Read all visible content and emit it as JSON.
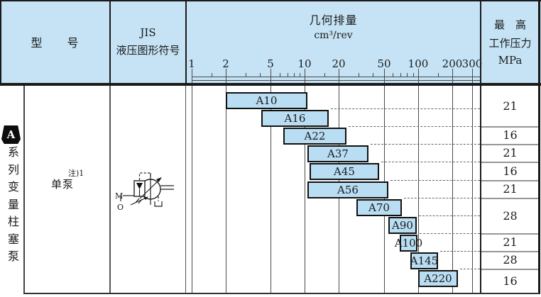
{
  "columns": {
    "model": "型　　号",
    "jis_line1": "JIS",
    "jis_line2": "液压图形符号",
    "displacement_title": "几何排量",
    "displacement_unit": "cm³/rev",
    "pressure_line1": "最　高",
    "pressure_line2": "工作压力",
    "pressure_line3": "MPa"
  },
  "sidebar": {
    "badge": "A",
    "vertical_label": "系列变量柱塞泵"
  },
  "model_cell": {
    "note": "注)1",
    "label": "单泵"
  },
  "jis_symbol": {
    "port_m": "M",
    "port_o": "O"
  },
  "chart_data": {
    "type": "bar",
    "orientation": "horizontal-range",
    "title": "几何排量",
    "xlabel": "cm³/rev",
    "x_scale": "log",
    "xlim": [
      1,
      300
    ],
    "x_ticks": [
      1,
      2,
      5,
      10,
      20,
      50,
      100,
      200,
      300
    ],
    "x_minor_ticks": [
      1.5,
      3,
      4,
      6,
      7,
      8,
      9,
      15,
      30,
      40,
      60,
      70,
      80,
      90,
      150
    ],
    "grid": true,
    "series": [
      {
        "name": "A10",
        "range": [
          2.0,
          10.5
        ],
        "pressure_mpa": 21
      },
      {
        "name": "A16",
        "range": [
          4.1,
          16.3
        ],
        "pressure_mpa": 21
      },
      {
        "name": "A22",
        "range": [
          6.4,
          23.2
        ],
        "pressure_mpa": 16
      },
      {
        "name": "A37",
        "range": [
          10.5,
          36.5
        ],
        "pressure_mpa": 21
      },
      {
        "name": "A45",
        "range": [
          11.0,
          45
        ],
        "pressure_mpa": 16
      },
      {
        "name": "A56",
        "range": [
          10.5,
          54.5
        ],
        "pressure_mpa": 21
      },
      {
        "name": "A70",
        "range": [
          28.5,
          72
        ],
        "pressure_mpa": 28
      },
      {
        "name": "A90",
        "range": [
          55,
          97
        ],
        "pressure_mpa": 28
      },
      {
        "name": "A100",
        "range": [
          68.5,
          99
        ],
        "pressure_mpa": 21
      },
      {
        "name": "A145",
        "range": [
          85,
          150
        ],
        "pressure_mpa": 28
      },
      {
        "name": "A220",
        "range": [
          100,
          224
        ],
        "pressure_mpa": 16
      }
    ],
    "pressure_cells": [
      {
        "value": 21,
        "rows": [
          0,
          1
        ]
      },
      {
        "value": 16,
        "rows": [
          2,
          2
        ]
      },
      {
        "value": 21,
        "rows": [
          3,
          3
        ]
      },
      {
        "value": 16,
        "rows": [
          4,
          4
        ]
      },
      {
        "value": 21,
        "rows": [
          5,
          5
        ]
      },
      {
        "value": 28,
        "rows": [
          6,
          7
        ]
      },
      {
        "value": 21,
        "rows": [
          8,
          8
        ]
      },
      {
        "value": 28,
        "rows": [
          9,
          9
        ]
      },
      {
        "value": 16,
        "rows": [
          10,
          10
        ]
      }
    ]
  },
  "colors": {
    "header_bg": "#c5e3f5",
    "bar_fill": "#b9ddf3",
    "bar_border": "#111111",
    "line_dark": "#1a1a1a",
    "line_gray": "#4a4a4a",
    "pressure_line": "#969696",
    "dash": "#666666",
    "text": "#1a1a1a"
  }
}
